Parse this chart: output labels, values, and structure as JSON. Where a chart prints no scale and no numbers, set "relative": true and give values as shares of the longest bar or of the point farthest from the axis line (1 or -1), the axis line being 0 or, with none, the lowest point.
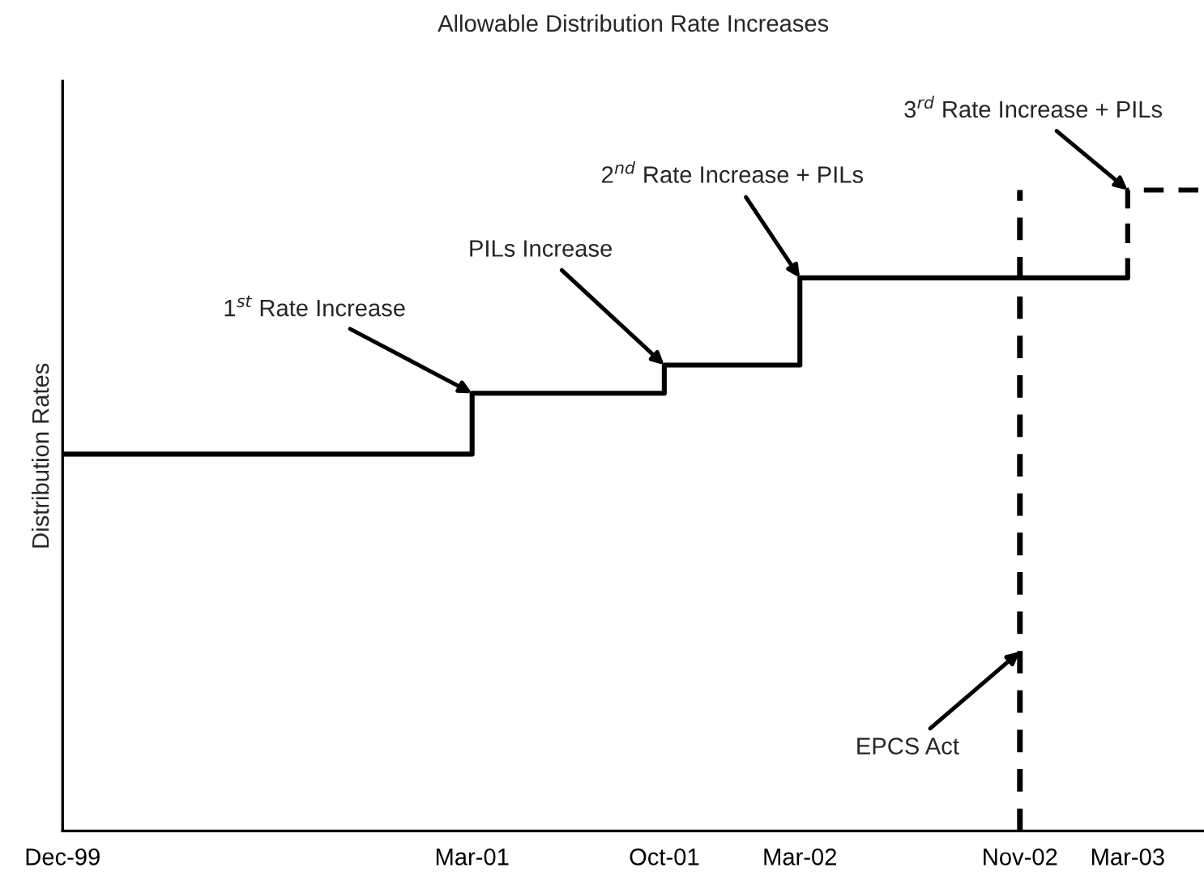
{
  "chart_data": {
    "type": "step",
    "title": "Allowable Distribution Rate Increases",
    "ylabel": "Distribution Rates",
    "relative": true,
    "xlim": [
      "1999-12-01",
      "2003-05-25"
    ],
    "xticks": [
      {
        "value": "1999-12-01",
        "label": "Dec-99"
      },
      {
        "value": "2001-03-01",
        "label": "Mar-01"
      },
      {
        "value": "2001-10-01",
        "label": "Oct-01"
      },
      {
        "value": "2002-03-01",
        "label": "Mar-02"
      },
      {
        "value": "2002-11-01",
        "label": "Nov-02"
      },
      {
        "value": "2003-03-01",
        "label": "Mar-03"
      }
    ],
    "series": [
      {
        "color": "#000000",
        "line_style": "solid",
        "x": [
          "1999-12-01",
          "2001-03-01",
          "2001-10-01",
          "2002-03-01",
          "2003-03-01"
        ],
        "values": [
          0.588,
          0.683,
          0.727,
          0.863,
          0.863
        ]
      },
      {
        "color": "#000000",
        "line_style": "dashed",
        "x": [
          "2003-03-01",
          "2003-03-01",
          "2003-05-25"
        ],
        "values": [
          0.863,
          1,
          1
        ]
      }
    ],
    "ref_lines": [
      {
        "axis": "x",
        "value": "2002-11-01",
        "color": "#000000",
        "line_style": "dashed"
      }
    ],
    "annotations": [
      {
        "text": "1$^{st}$ Rate Increase",
        "x": "2001-03-01",
        "y": 0.683
      },
      {
        "text": "PILs Increase",
        "x": "2001-10-01",
        "y": 0.727
      },
      {
        "text": "2$^{nd}$ Rate Increase + PILs",
        "x": "2002-03-01",
        "y": 0.863
      },
      {
        "text": "3$^{rd}$ Rate Increase + PILs",
        "x": "2003-03-01",
        "y": 1
      },
      {
        "text": "EPCS Act",
        "x": "2002-11-01",
        "y": 0.28
      }
    ],
    "grid": false,
    "legend": false
  }
}
